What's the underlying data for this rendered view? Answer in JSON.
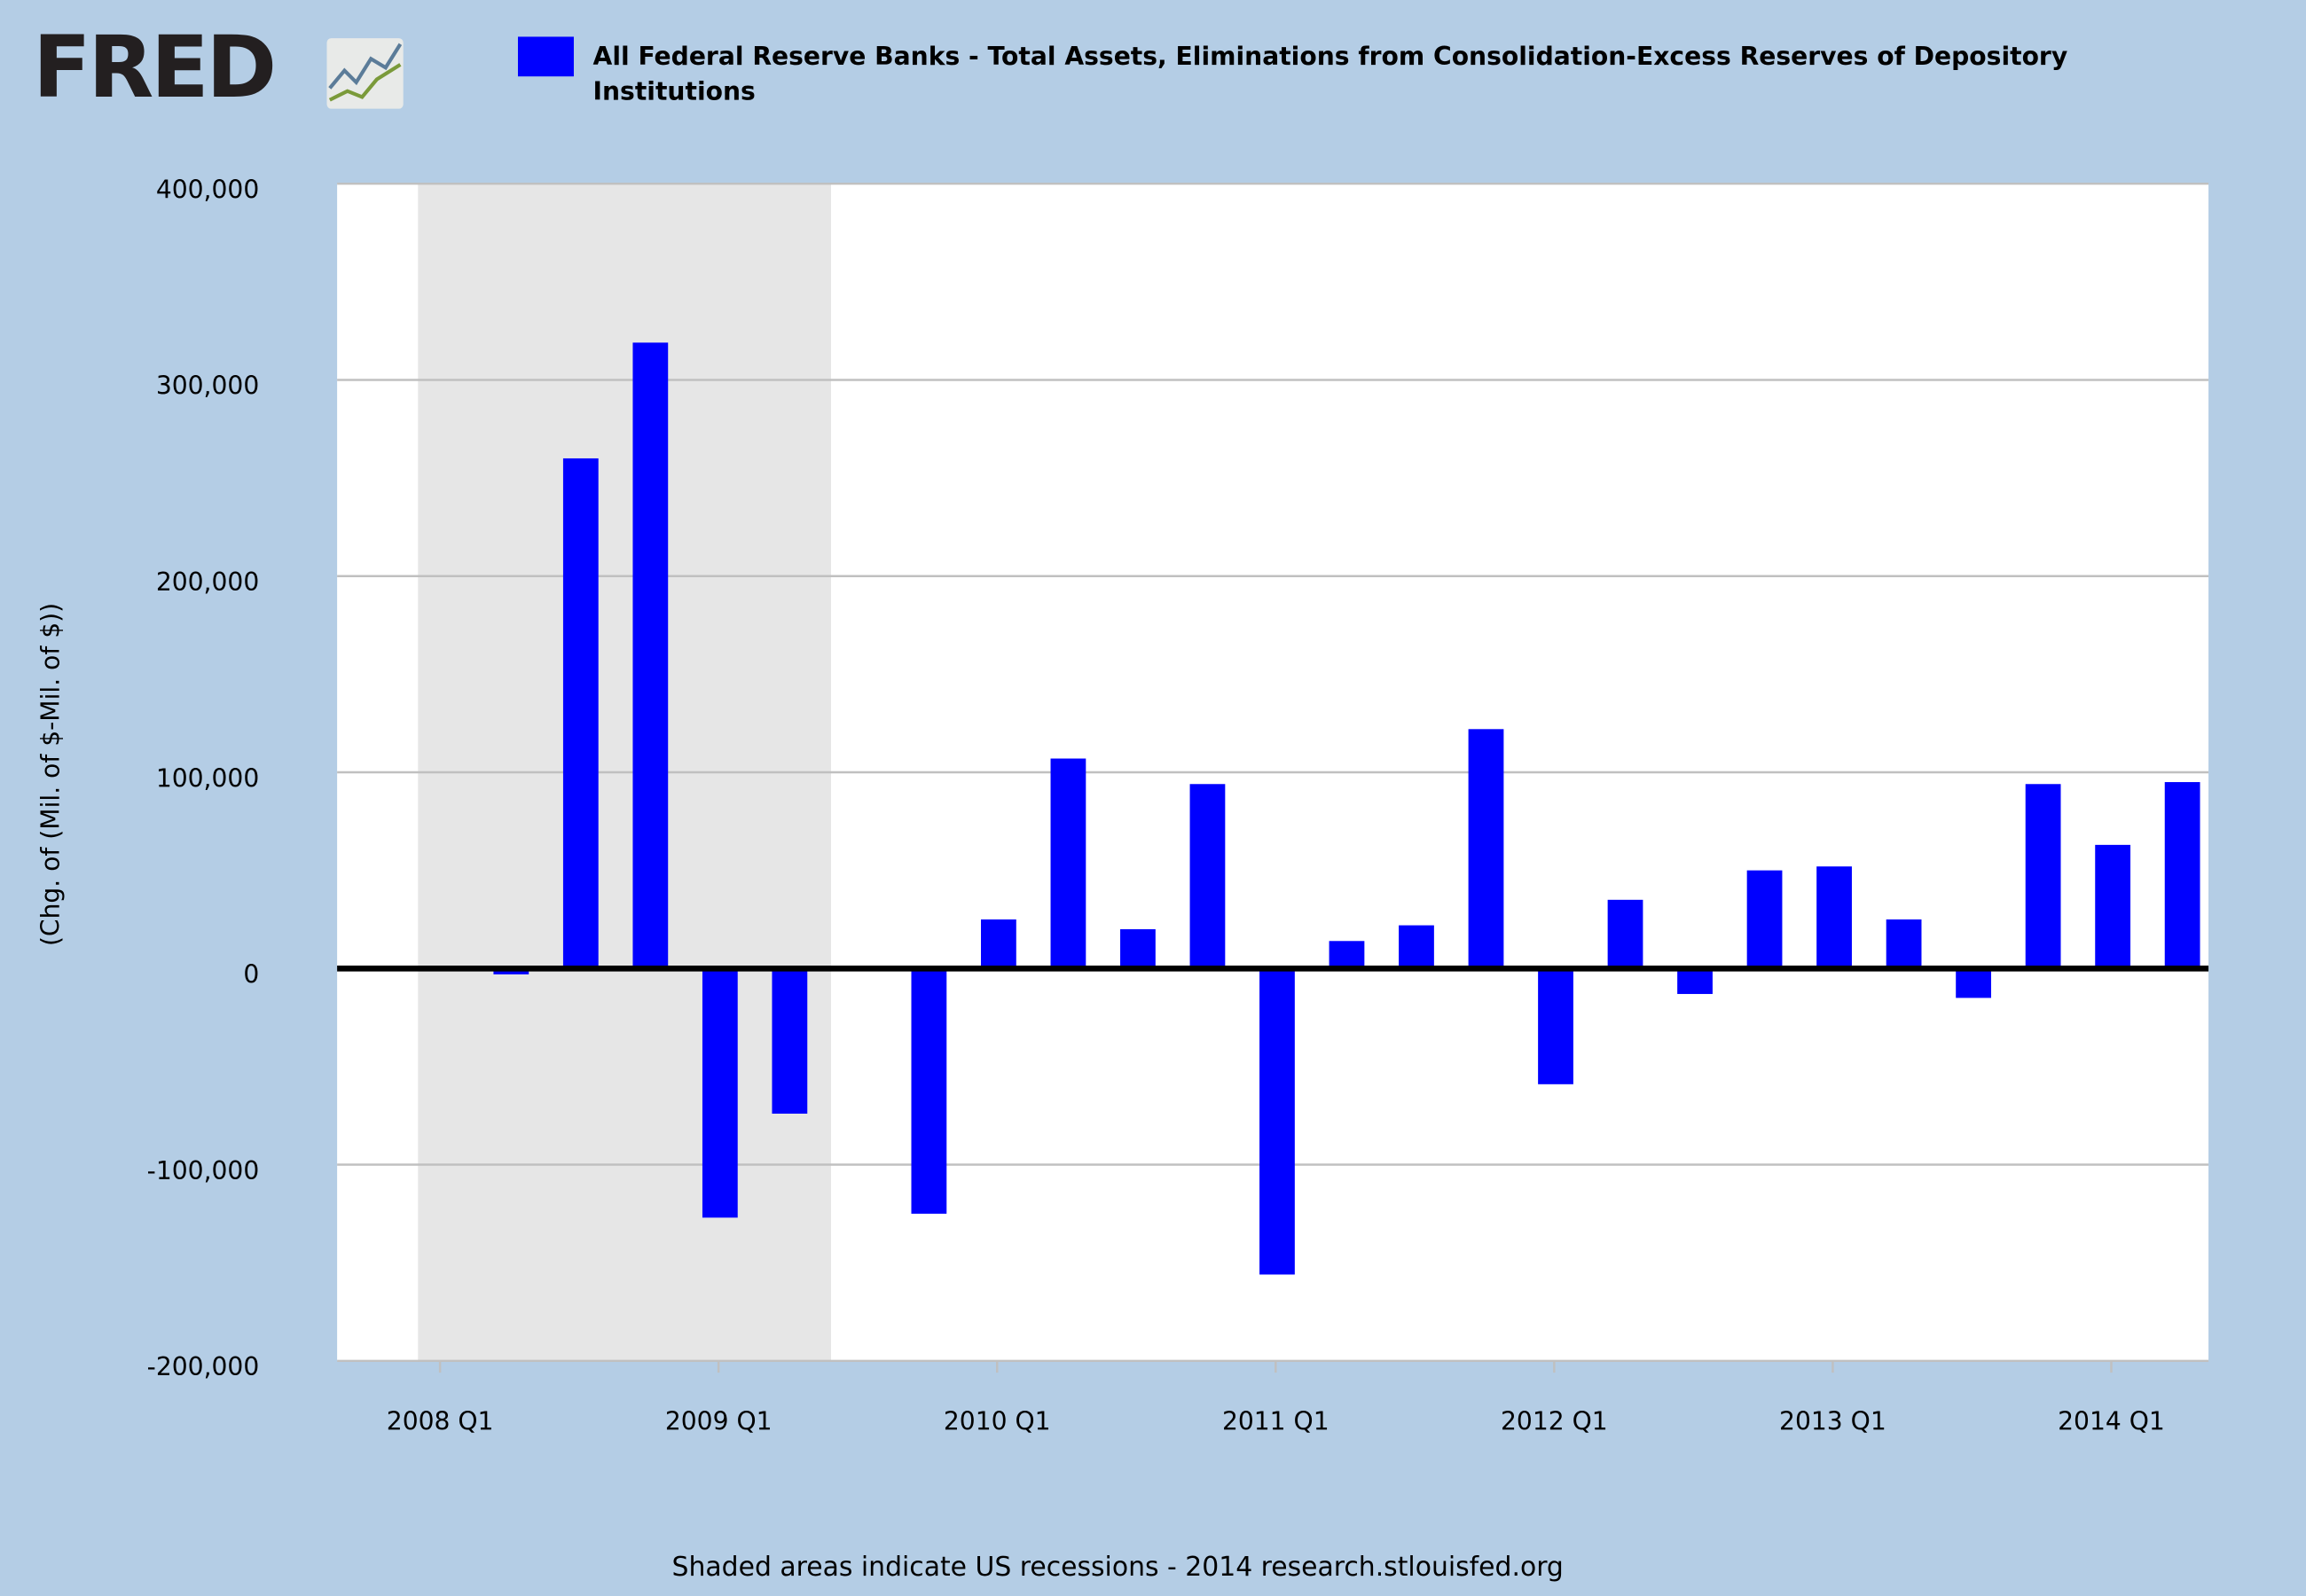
{
  "chart_data": {
    "type": "bar",
    "logo": "FRED",
    "y_axis_label": "(Chg. of (Mil. of $-Mil. of $))",
    "note": "Shaded areas indicate US recessions - 2014 research.stlouisfed.org",
    "categories": [
      "2008 Q1",
      null,
      null,
      null,
      "2009 Q1",
      null,
      null,
      null,
      "2010 Q1",
      null,
      null,
      null,
      "2011 Q1",
      null,
      null,
      null,
      "2012 Q1",
      null,
      null,
      null,
      "2013 Q1",
      null,
      null,
      null,
      "2014 Q1",
      null
    ],
    "series": [
      {
        "name": "All Federal Reserve Banks - Total Assets, Eliminations from Consolidation-Excess Reserves of Depository Institutions",
        "color": "#0000ff",
        "values": [
          null,
          -3000,
          260000,
          319000,
          -127000,
          -74000,
          0,
          -125000,
          25000,
          107000,
          20000,
          94000,
          -156000,
          14000,
          22000,
          122000,
          -59000,
          35000,
          -13000,
          50000,
          52000,
          25000,
          -15000,
          94000,
          63000,
          95000
        ]
      }
    ],
    "ylim": [
      -200000,
      400000
    ],
    "yticks": [
      {
        "value": -200000,
        "label": "-200,000"
      },
      {
        "value": -100000,
        "label": "-100,000"
      },
      0,
      {
        "value": 100000,
        "label": "100,000"
      },
      {
        "value": 200000,
        "label": "200,000"
      },
      {
        "value": 300000,
        "label": "300,000"
      },
      {
        "value": 400000,
        "label": "400,000"
      }
    ],
    "grid": true
  }
}
